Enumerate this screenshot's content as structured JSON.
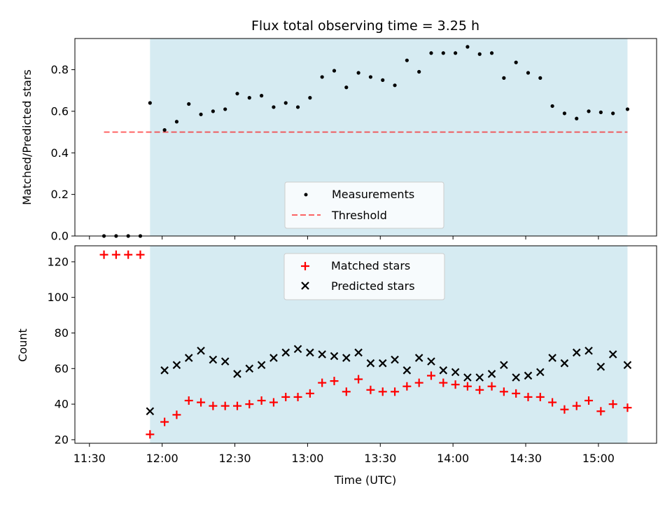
{
  "figure_title": "Flux total observing time = 3.25 h",
  "colors": {
    "observing_band": "#add8e6",
    "measurement": "#000000",
    "threshold": "#ff0000",
    "matched": "#ff0000",
    "predicted": "#000000"
  },
  "chart_data": [
    {
      "type": "scatter",
      "title": "Flux total observing time = 3.25 h",
      "xlabel": "",
      "ylabel": "Matched/Predicted stars",
      "xlim": [
        "11:24",
        "15:24"
      ],
      "ylim": [
        0,
        0.95
      ],
      "yticks": [
        0.0,
        0.2,
        0.4,
        0.6,
        0.8
      ],
      "ytick_labels": [
        "0.0",
        "0.2",
        "0.4",
        "0.6",
        "0.8"
      ],
      "observing_band": [
        "11:55",
        "15:12"
      ],
      "threshold": {
        "value": 0.5,
        "x_range": [
          "11:36",
          "15:12"
        ]
      },
      "legend": [
        "Measurements",
        "Threshold"
      ],
      "legend_position": "lower-center",
      "series": [
        {
          "name": "Measurements",
          "x": [
            "11:36",
            "11:41",
            "11:46",
            "11:51",
            "11:55",
            "12:01",
            "12:06",
            "12:11",
            "12:16",
            "12:21",
            "12:26",
            "12:31",
            "12:36",
            "12:41",
            "12:46",
            "12:51",
            "12:56",
            "13:01",
            "13:06",
            "13:11",
            "13:16",
            "13:21",
            "13:26",
            "13:31",
            "13:36",
            "13:41",
            "13:46",
            "13:51",
            "13:56",
            "14:01",
            "14:06",
            "14:11",
            "14:16",
            "14:21",
            "14:26",
            "14:31",
            "14:36",
            "14:41",
            "14:46",
            "14:51",
            "14:56",
            "15:01",
            "15:06",
            "15:12"
          ],
          "y": [
            0.0,
            0.0,
            0.0,
            0.0,
            0.64,
            0.51,
            0.55,
            0.635,
            0.585,
            0.6,
            0.61,
            0.685,
            0.665,
            0.675,
            0.62,
            0.64,
            0.62,
            0.665,
            0.765,
            0.795,
            0.715,
            0.785,
            0.765,
            0.75,
            0.725,
            0.845,
            0.79,
            0.88,
            0.88,
            0.88,
            0.91,
            0.875,
            0.88,
            0.76,
            0.835,
            0.785,
            0.76,
            0.625,
            0.59,
            0.565,
            0.6,
            0.595,
            0.59,
            0.61
          ]
        }
      ]
    },
    {
      "type": "scatter",
      "title": "",
      "xlabel": "Time (UTC)",
      "ylabel": "Count",
      "xlim": [
        "11:24",
        "15:24"
      ],
      "ylim": [
        18,
        129
      ],
      "yticks": [
        20,
        40,
        60,
        80,
        100,
        120
      ],
      "xticks": [
        "11:30",
        "12:00",
        "12:30",
        "13:00",
        "13:30",
        "14:00",
        "14:30",
        "15:00"
      ],
      "observing_band": [
        "11:55",
        "15:12"
      ],
      "legend": [
        "Matched stars",
        "Predicted stars"
      ],
      "legend_position": "upper-center",
      "series": [
        {
          "name": "Matched stars",
          "x": [
            "11:36",
            "11:41",
            "11:46",
            "11:51",
            "11:55",
            "12:01",
            "12:06",
            "12:11",
            "12:16",
            "12:21",
            "12:26",
            "12:31",
            "12:36",
            "12:41",
            "12:46",
            "12:51",
            "12:56",
            "13:01",
            "13:06",
            "13:11",
            "13:16",
            "13:21",
            "13:26",
            "13:31",
            "13:36",
            "13:41",
            "13:46",
            "13:51",
            "13:56",
            "14:01",
            "14:06",
            "14:11",
            "14:16",
            "14:21",
            "14:26",
            "14:31",
            "14:36",
            "14:41",
            "14:46",
            "14:51",
            "14:56",
            "15:01",
            "15:06",
            "15:12"
          ],
          "y": [
            124,
            124,
            124,
            124,
            23,
            30,
            34,
            42,
            41,
            39,
            39,
            39,
            40,
            42,
            41,
            44,
            44,
            46,
            52,
            53,
            47,
            54,
            48,
            47,
            47,
            50,
            52,
            56,
            52,
            51,
            50,
            48,
            50,
            47,
            46,
            44,
            44,
            41,
            37,
            39,
            42,
            36,
            40,
            38
          ]
        },
        {
          "name": "Predicted stars",
          "x": [
            "11:55",
            "12:01",
            "12:06",
            "12:11",
            "12:16",
            "12:21",
            "12:26",
            "12:31",
            "12:36",
            "12:41",
            "12:46",
            "12:51",
            "12:56",
            "13:01",
            "13:06",
            "13:11",
            "13:16",
            "13:21",
            "13:26",
            "13:31",
            "13:36",
            "13:41",
            "13:46",
            "13:51",
            "13:56",
            "14:01",
            "14:06",
            "14:11",
            "14:16",
            "14:21",
            "14:26",
            "14:31",
            "14:36",
            "14:41",
            "14:46",
            "14:51",
            "14:56",
            "15:01",
            "15:06",
            "15:12"
          ],
          "y": [
            36,
            59,
            62,
            66,
            70,
            65,
            64,
            57,
            60,
            62,
            66,
            69,
            71,
            69,
            68,
            67,
            66,
            69,
            63,
            63,
            65,
            59,
            66,
            64,
            59,
            58,
            55,
            55,
            57,
            62,
            55,
            56,
            58,
            66,
            63,
            69,
            70,
            61,
            68,
            62
          ]
        }
      ]
    }
  ]
}
